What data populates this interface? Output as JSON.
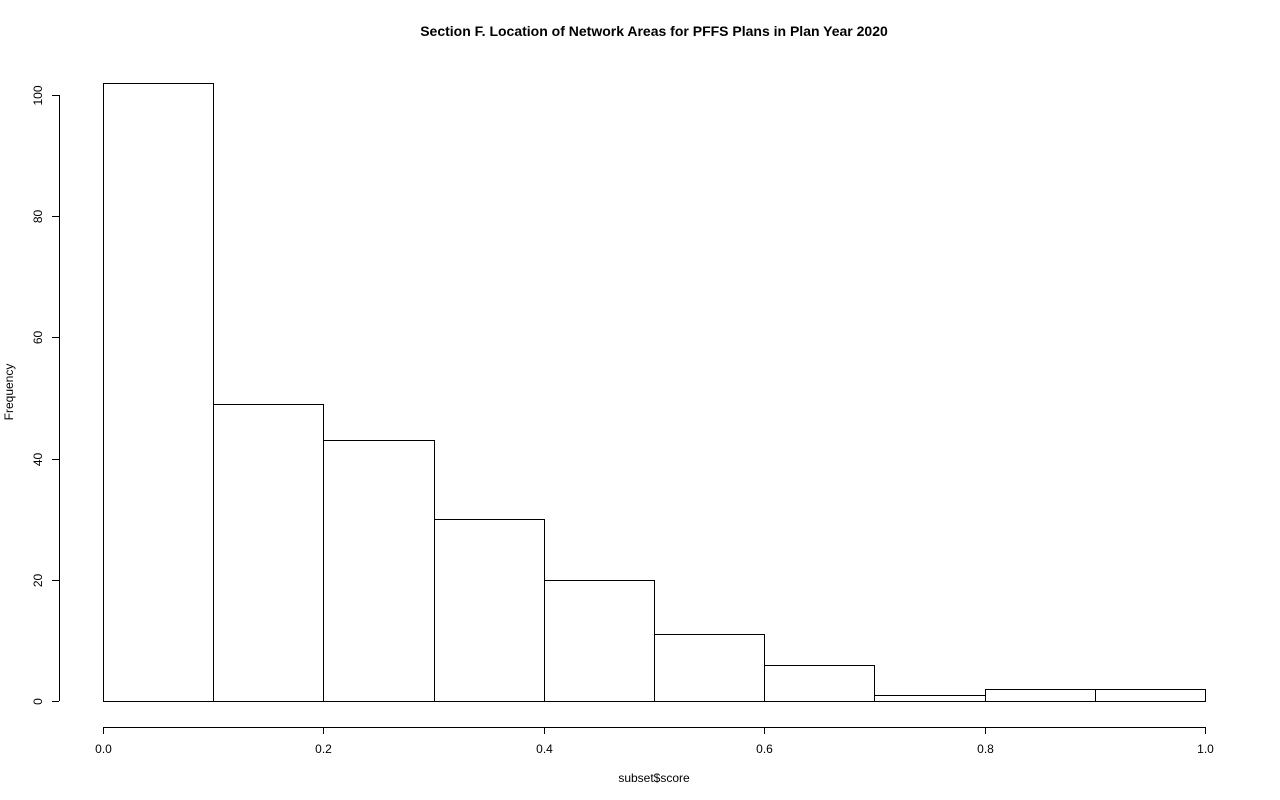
{
  "chart_data": {
    "type": "bar",
    "title": "Section F.  Location of Network Areas for PFFS Plans in Plan Year 2020",
    "xlabel": "subset$score",
    "ylabel": "Frequency",
    "bins": [
      {
        "start": 0.0,
        "end": 0.1,
        "value": 102
      },
      {
        "start": 0.1,
        "end": 0.2,
        "value": 49
      },
      {
        "start": 0.2,
        "end": 0.3,
        "value": 43
      },
      {
        "start": 0.3,
        "end": 0.4,
        "value": 30
      },
      {
        "start": 0.4,
        "end": 0.5,
        "value": 20
      },
      {
        "start": 0.5,
        "end": 0.6,
        "value": 11
      },
      {
        "start": 0.6,
        "end": 0.7,
        "value": 6
      },
      {
        "start": 0.7,
        "end": 0.8,
        "value": 1
      },
      {
        "start": 0.8,
        "end": 0.9,
        "value": 2
      },
      {
        "start": 0.9,
        "end": 1.0,
        "value": 2
      }
    ],
    "xlim": [
      0.0,
      1.0
    ],
    "ylim": [
      0,
      102
    ],
    "x_ticks": [
      "0.0",
      "0.2",
      "0.4",
      "0.6",
      "0.8",
      "1.0"
    ],
    "y_ticks": [
      "0",
      "20",
      "40",
      "60",
      "80",
      "100"
    ],
    "grid": false,
    "legend": "none",
    "colors": {
      "bar_fill": "#ffffff",
      "bar_stroke": "#000000",
      "background": "#ffffff"
    }
  }
}
